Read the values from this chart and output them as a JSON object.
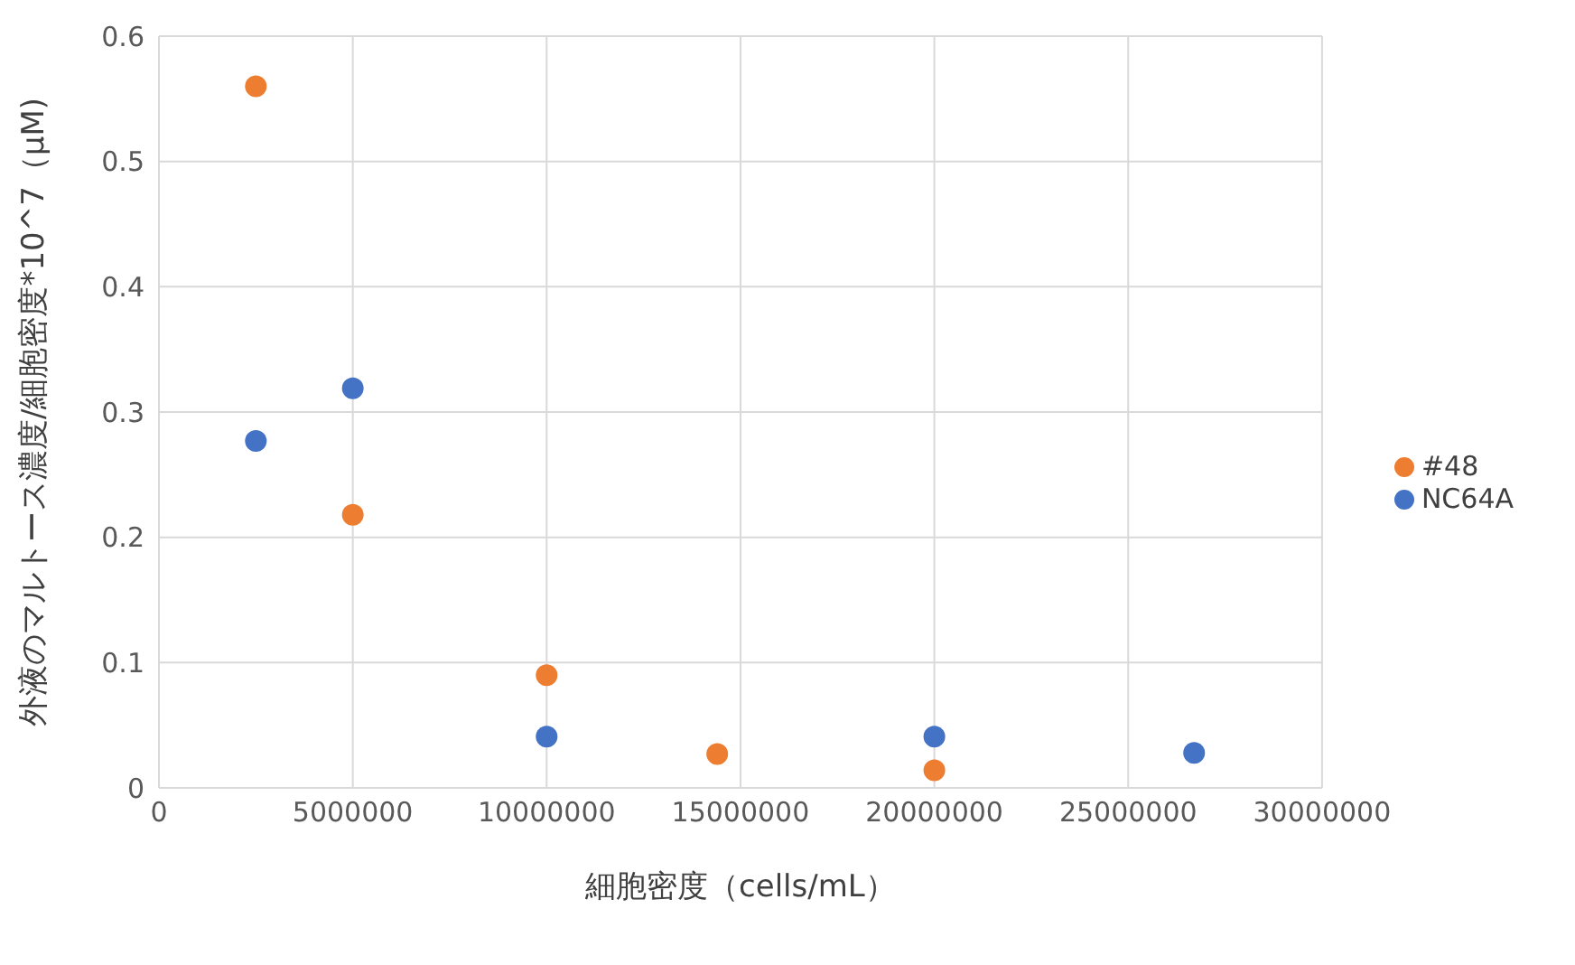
{
  "chart_data": {
    "type": "scatter",
    "xlabel": "細胞密度（cells/mL）",
    "ylabel": "外液のマルトース濃度/細胞密度*10^7（μM)",
    "series": [
      {
        "name": "NC64A",
        "color": "#4472c4",
        "x": [
          2500000,
          5000000,
          10000000,
          20000000,
          26700000
        ],
        "values": [
          0.277,
          0.319,
          0.041,
          0.041,
          0.028
        ]
      },
      {
        "name": "#48",
        "color": "#ed7d31",
        "x": [
          2500000,
          5000000,
          10000000,
          14400000,
          20000000
        ],
        "values": [
          0.56,
          0.218,
          0.09,
          0.027,
          0.014
        ]
      }
    ],
    "xlim": [
      0,
      30000000
    ],
    "xticks": [
      0,
      5000000,
      10000000,
      15000000,
      20000000,
      25000000,
      30000000
    ],
    "ylim": [
      0,
      0.6
    ],
    "yticks": [
      0,
      0.1,
      0.2,
      0.3,
      0.4,
      0.5,
      0.6
    ],
    "grid": true,
    "legend": "right",
    "marker": "circle"
  }
}
